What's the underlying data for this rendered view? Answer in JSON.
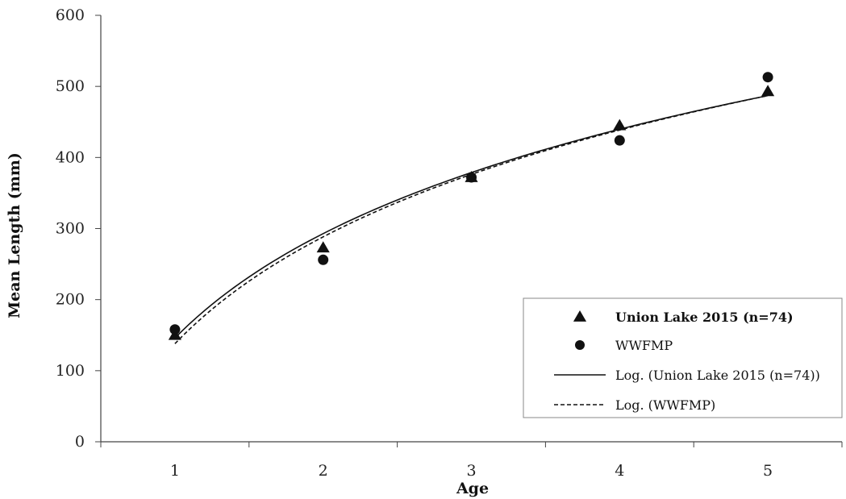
{
  "chart_data": {
    "type": "scatter",
    "xlabel": "Age",
    "ylabel": "Mean Length (mm)",
    "x_ticks": [
      "1",
      "2",
      "3",
      "4",
      "5"
    ],
    "y_ticks": [
      "0",
      "100",
      "200",
      "300",
      "400",
      "500",
      "600"
    ],
    "xlim": [
      0.5,
      5.5
    ],
    "ylim": [
      0,
      600
    ],
    "grid": false,
    "legend_position": "bottom-right",
    "series": [
      {
        "name": "Union Lake 2015 (n=74)",
        "marker": "triangle",
        "x": [
          1,
          2,
          3,
          4,
          5
        ],
        "y": [
          150,
          273,
          372,
          445,
          493
        ]
      },
      {
        "name": "WWFMP",
        "marker": "circle",
        "x": [
          1,
          2,
          3,
          4,
          5
        ],
        "y": [
          158,
          256,
          372,
          424,
          513
        ]
      }
    ],
    "trendlines": [
      {
        "name": "Log. (Union Lake 2015 (n=74))",
        "style": "solid",
        "x": [
          1,
          5
        ],
        "y": [
          146,
          487
        ]
      },
      {
        "name": "Log. (WWFMP)",
        "style": "dashed",
        "x": [
          1,
          5
        ],
        "y": [
          138,
          487
        ]
      }
    ]
  },
  "colors": {
    "marker": "#111111",
    "axis": "#444444"
  }
}
